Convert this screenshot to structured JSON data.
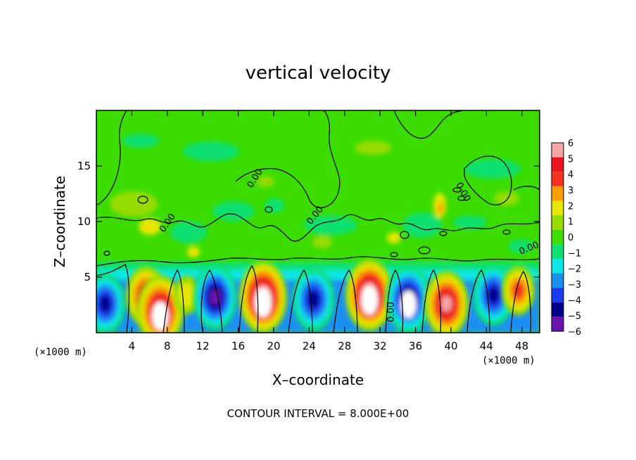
{
  "chart_data": {
    "type": "heatmap",
    "title": "vertical velocity",
    "xlabel": "X–coordinate",
    "ylabel": "Z–coordinate",
    "x_unit": "(×1000 m)",
    "z_unit": "(×1000 m)",
    "xlim": [
      0,
      50
    ],
    "ylim": [
      0,
      20
    ],
    "xticks": [
      4,
      8,
      12,
      16,
      20,
      24,
      28,
      32,
      36,
      40,
      44,
      48
    ],
    "yticks": [
      5,
      10,
      15
    ],
    "colorbar": {
      "levels": [
        6,
        5,
        4,
        3,
        2,
        1,
        0,
        -1,
        -2,
        -3,
        -4,
        -5,
        -6
      ],
      "level_labels": [
        "6",
        "5",
        "4",
        "3",
        "2",
        "1",
        "0",
        "−1",
        "−2",
        "−3",
        "−4",
        "−5",
        "−6"
      ],
      "colors": [
        "#f4a6a6",
        "#e8141e",
        "#f6321e",
        "#f8a000",
        "#e6e600",
        "#96dc00",
        "#3cdc00",
        "#10e070",
        "#10e6e6",
        "#1a90f0",
        "#1a3cf0",
        "#00008c",
        "#6a12b0"
      ]
    },
    "contour_labels": [
      "0.00",
      "0.00",
      "0.00",
      "0.00",
      "0.00",
      "0.00"
    ],
    "footer": "CONTOUR INTERVAL = 8.000E+00",
    "lower_cells": [
      {
        "x": 1.0,
        "z": 2.6,
        "w": -4.6
      },
      {
        "x": 5.6,
        "z": 3.3,
        "w": 4.6
      },
      {
        "x": 7.2,
        "z": 2.0,
        "w": 6.0
      },
      {
        "x": 10.2,
        "z": 3.4,
        "w": 1.8
      },
      {
        "x": 13.4,
        "z": 3.2,
        "w": -5.2
      },
      {
        "x": 18.8,
        "z": 3.2,
        "w": 6.2
      },
      {
        "x": 24.5,
        "z": 3.0,
        "w": -5.0
      },
      {
        "x": 30.8,
        "z": 3.4,
        "w": 6.2
      },
      {
        "x": 35.2,
        "z": 3.0,
        "w": -5.6
      },
      {
        "x": 39.5,
        "z": 2.6,
        "w": 5.4
      },
      {
        "x": 44.8,
        "z": 3.4,
        "w": -4.8
      },
      {
        "x": 47.6,
        "z": 3.8,
        "w": 3.2
      }
    ]
  }
}
